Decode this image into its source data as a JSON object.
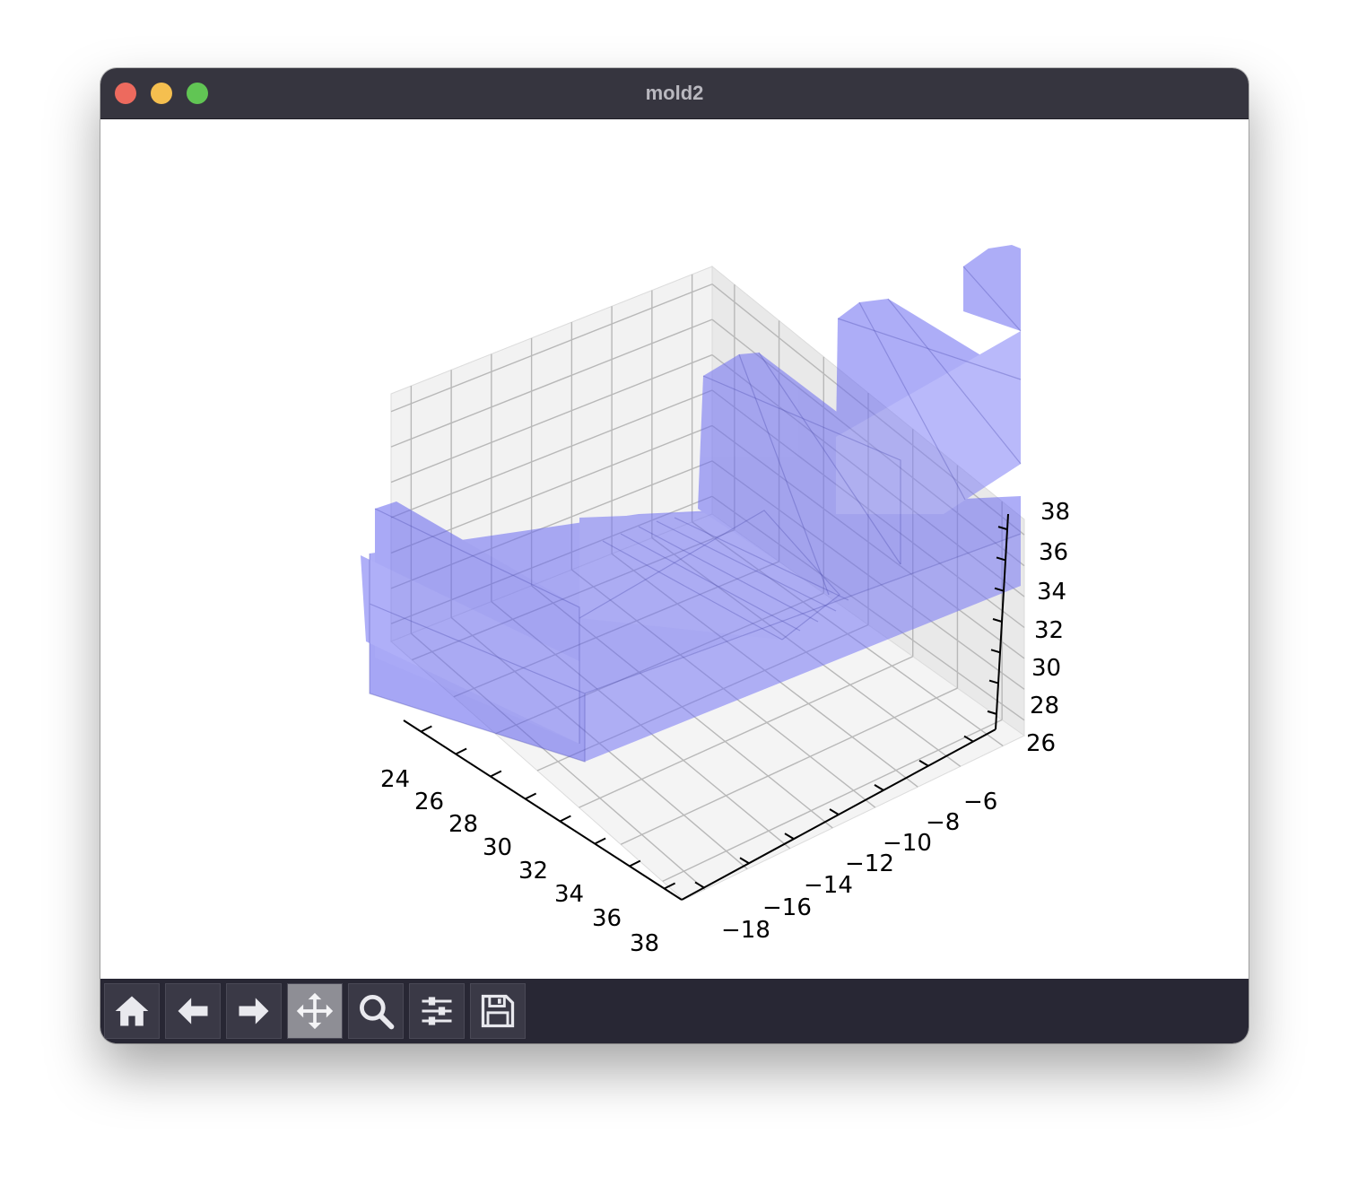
{
  "window": {
    "title": "mold2"
  },
  "toolbar": {
    "buttons": [
      {
        "name": "home-button",
        "icon": "home-icon"
      },
      {
        "name": "back-button",
        "icon": "arrow-left-icon"
      },
      {
        "name": "forward-button",
        "icon": "arrow-right-icon"
      },
      {
        "name": "pan-button",
        "icon": "move-icon",
        "active": true
      },
      {
        "name": "zoom-button",
        "icon": "magnifier-icon"
      },
      {
        "name": "configure-subplots-button",
        "icon": "sliders-icon"
      },
      {
        "name": "save-button",
        "icon": "floppy-disk-icon"
      }
    ]
  },
  "chart_data": {
    "type": "3d-surface",
    "title": "",
    "face_color": "#7b7bf5",
    "grid": true,
    "x_axis": {
      "label": "",
      "ticks": [
        "24",
        "26",
        "28",
        "30",
        "32",
        "34",
        "36",
        "38"
      ]
    },
    "y_axis": {
      "label": "",
      "ticks": [
        "−18",
        "−16",
        "−14",
        "−12",
        "−10",
        "−8",
        "−6"
      ]
    },
    "z_axis": {
      "label": "",
      "ticks": [
        "26",
        "28",
        "30",
        "32",
        "34",
        "36",
        "38"
      ]
    }
  }
}
